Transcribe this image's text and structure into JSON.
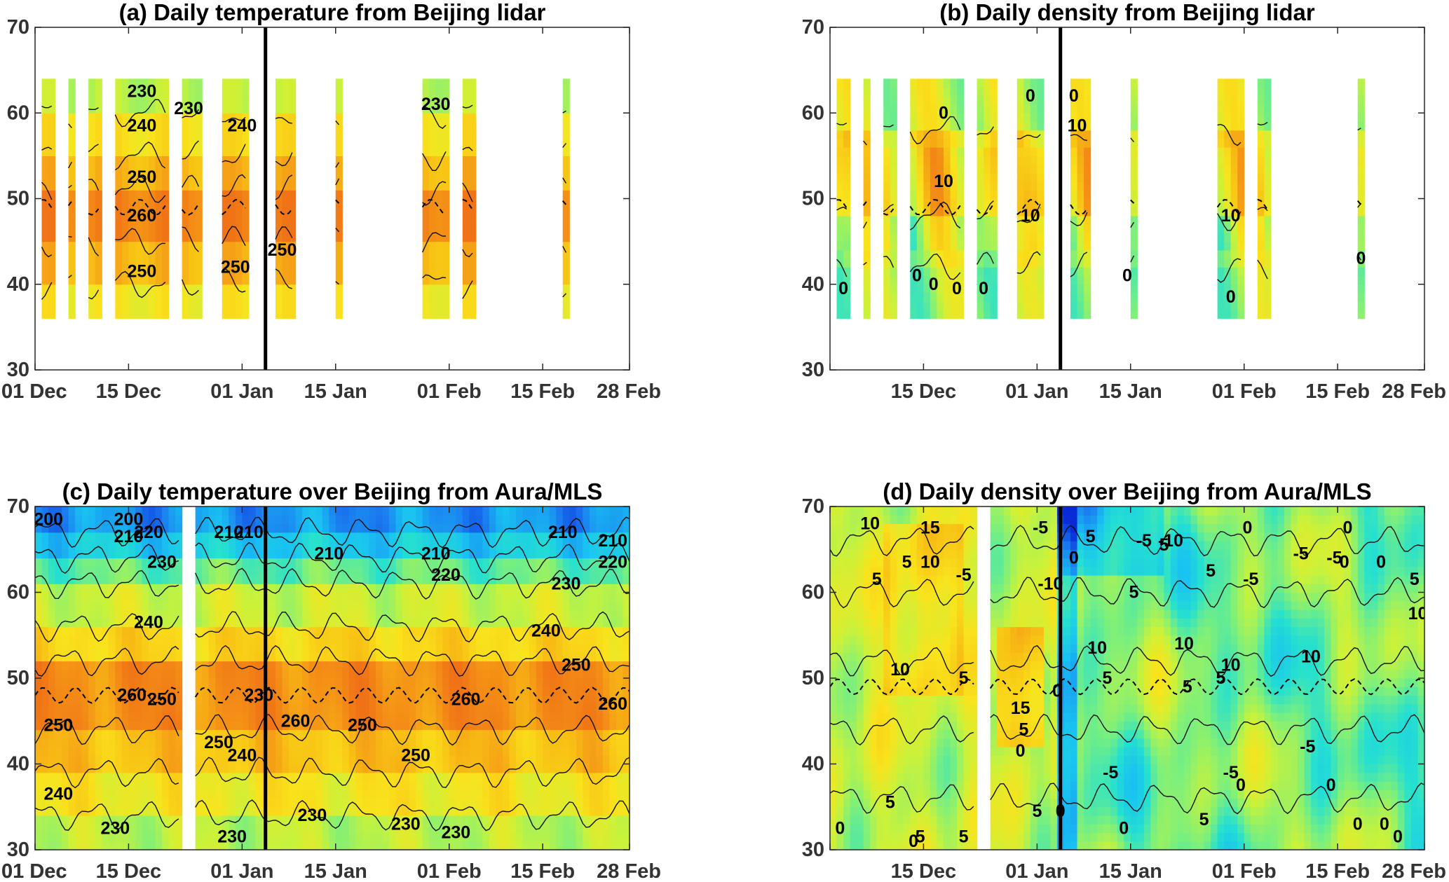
{
  "chart_data": [
    {
      "type": "heatmap",
      "title": "(a) Daily temperature from Beijing lidar",
      "xlabel": "",
      "ylabel": "",
      "xticks": [
        "01 Dec",
        "15 Dec",
        "01 Jan",
        "15 Jan",
        "01 Feb",
        "15 Feb",
        "28 Feb"
      ],
      "xtick_days": [
        0,
        14,
        31,
        45,
        62,
        76,
        89
      ],
      "xlim": [
        0,
        89
      ],
      "yticks": [
        "30",
        "40",
        "50",
        "60",
        "70"
      ],
      "ylim": [
        30,
        70
      ],
      "grid": false,
      "data_altitude_range": [
        36,
        64
      ],
      "vertical_line_day": 34.5,
      "observation_intervals": [
        [
          1,
          3
        ],
        [
          5,
          6
        ],
        [
          8,
          10
        ],
        [
          12,
          20
        ],
        [
          22,
          25
        ],
        [
          28,
          32
        ],
        [
          36,
          39
        ],
        [
          45,
          46
        ],
        [
          58,
          62
        ],
        [
          64,
          66
        ],
        [
          79,
          80
        ]
      ],
      "color_bands": [
        {
          "y": [
            60,
            64
          ],
          "value": 230
        },
        {
          "y": [
            55,
            60
          ],
          "value": 240
        },
        {
          "y": [
            51,
            55
          ],
          "value": 248
        },
        {
          "y": [
            45,
            51
          ],
          "value": 256
        },
        {
          "y": [
            40,
            45
          ],
          "value": 248
        },
        {
          "y": [
            36,
            40
          ],
          "value": 238
        }
      ],
      "contour_labels": [
        {
          "text": "230",
          "day": 16,
          "alt": 62.5
        },
        {
          "text": "230",
          "day": 23,
          "alt": 60.5
        },
        {
          "text": "240",
          "day": 16,
          "alt": 58.5
        },
        {
          "text": "240",
          "day": 31,
          "alt": 58.5
        },
        {
          "text": "250",
          "day": 16,
          "alt": 52.5
        },
        {
          "text": "260",
          "day": 16,
          "alt": 48
        },
        {
          "text": "250",
          "day": 16,
          "alt": 41.5
        },
        {
          "text": "250",
          "day": 30,
          "alt": 42
        },
        {
          "text": "250",
          "day": 37,
          "alt": 44
        },
        {
          "text": "230",
          "day": 60,
          "alt": 61
        }
      ],
      "dashed_level_alt": 49
    },
    {
      "type": "heatmap",
      "title": "(b) Daily density from Beijing lidar",
      "xlabel": "",
      "ylabel": "",
      "xticks": [
        "01 Dec",
        "15 Dec",
        "01 Jan",
        "15 Jan",
        "01 Feb",
        "15 Feb",
        "28 Feb"
      ],
      "xtick_days": [
        0,
        14,
        31,
        45,
        62,
        76,
        89
      ],
      "xlim": [
        0,
        89
      ],
      "yticks": [
        "30",
        "40",
        "50",
        "60",
        "70"
      ],
      "ylim": [
        30,
        70
      ],
      "grid": false,
      "data_altitude_range": [
        36,
        64
      ],
      "vertical_line_day": 34.5,
      "observation_intervals": [
        [
          1,
          3
        ],
        [
          5,
          6
        ],
        [
          8,
          10
        ],
        [
          12,
          20
        ],
        [
          22,
          25
        ],
        [
          28,
          32
        ],
        [
          36,
          39
        ],
        [
          45,
          46
        ],
        [
          58,
          62
        ],
        [
          64,
          66
        ],
        [
          79,
          80
        ]
      ],
      "color_bands": [
        {
          "y": [
            58,
            64
          ],
          "value": 0
        },
        {
          "y": [
            48,
            58
          ],
          "value": 5
        },
        {
          "y": [
            42,
            48
          ],
          "value": 0
        },
        {
          "y": [
            36,
            42
          ],
          "value": -2
        }
      ],
      "contour_labels": [
        {
          "text": "0",
          "day": 2,
          "alt": 39.5
        },
        {
          "text": "0",
          "day": 17,
          "alt": 60
        },
        {
          "text": "10",
          "day": 17,
          "alt": 52
        },
        {
          "text": "0",
          "day": 13,
          "alt": 41
        },
        {
          "text": "0",
          "day": 15.5,
          "alt": 40
        },
        {
          "text": "0",
          "day": 19,
          "alt": 39.5
        },
        {
          "text": "0",
          "day": 23,
          "alt": 39.5
        },
        {
          "text": "0",
          "day": 30,
          "alt": 62
        },
        {
          "text": "10",
          "day": 30,
          "alt": 48
        },
        {
          "text": "0",
          "day": 36.5,
          "alt": 62
        },
        {
          "text": "10",
          "day": 37,
          "alt": 58.5
        },
        {
          "text": "0",
          "day": 44.5,
          "alt": 41
        },
        {
          "text": "10",
          "day": 60,
          "alt": 48
        },
        {
          "text": "0",
          "day": 60,
          "alt": 38.5
        },
        {
          "text": "0",
          "day": 79.5,
          "alt": 43
        }
      ],
      "dashed_level_alt": 49
    },
    {
      "type": "heatmap",
      "title": "(c) Daily temperature over Beijing from Aura/MLS",
      "xlabel": "",
      "ylabel": "",
      "xticks": [
        "01 Dec",
        "15 Dec",
        "01 Jan",
        "15 Jan",
        "01 Feb",
        "15 Feb",
        "28 Feb"
      ],
      "xtick_days": [
        0,
        14,
        31,
        45,
        62,
        76,
        89
      ],
      "xlim": [
        0,
        89
      ],
      "yticks": [
        "30",
        "40",
        "50",
        "60",
        "70"
      ],
      "ylim": [
        30,
        70
      ],
      "grid": false,
      "data_altitude_range": [
        30,
        70
      ],
      "vertical_line_day": 34.5,
      "missing_intervals": [
        [
          22,
          24
        ]
      ],
      "color_bands": [
        {
          "y": [
            67,
            70
          ],
          "value": 205
        },
        {
          "y": [
            64,
            67
          ],
          "value": 212
        },
        {
          "y": [
            61,
            64
          ],
          "value": 222
        },
        {
          "y": [
            56,
            61
          ],
          "value": 232
        },
        {
          "y": [
            52,
            56
          ],
          "value": 242
        },
        {
          "y": [
            44,
            52
          ],
          "value": 254
        },
        {
          "y": [
            39,
            44
          ],
          "value": 246
        },
        {
          "y": [
            34,
            39
          ],
          "value": 238
        },
        {
          "y": [
            30,
            34
          ],
          "value": 230
        }
      ],
      "contour_labels": [
        {
          "text": "200",
          "day": 2,
          "alt": 68.5
        },
        {
          "text": "200",
          "day": 14,
          "alt": 68.5
        },
        {
          "text": "210",
          "day": 14,
          "alt": 66.5
        },
        {
          "text": "220",
          "day": 17,
          "alt": 67
        },
        {
          "text": "230",
          "day": 19,
          "alt": 63.5
        },
        {
          "text": "210",
          "day": 29,
          "alt": 67
        },
        {
          "text": "210",
          "day": 32,
          "alt": 67
        },
        {
          "text": "240",
          "day": 17,
          "alt": 56.5
        },
        {
          "text": "250",
          "day": 3.5,
          "alt": 44.5
        },
        {
          "text": "260",
          "day": 14.5,
          "alt": 48
        },
        {
          "text": "250",
          "day": 19,
          "alt": 47.5
        },
        {
          "text": "240",
          "day": 3.5,
          "alt": 36.5
        },
        {
          "text": "230",
          "day": 12,
          "alt": 32.5
        },
        {
          "text": "250",
          "day": 27.5,
          "alt": 42.5
        },
        {
          "text": "240",
          "day": 31,
          "alt": 41
        },
        {
          "text": "230",
          "day": 29.5,
          "alt": 31.5
        },
        {
          "text": "230",
          "day": 33.5,
          "alt": 48
        },
        {
          "text": "260",
          "day": 39,
          "alt": 45
        },
        {
          "text": "250",
          "day": 49,
          "alt": 44.5
        },
        {
          "text": "250",
          "day": 57,
          "alt": 41
        },
        {
          "text": "230",
          "day": 41.5,
          "alt": 34
        },
        {
          "text": "230",
          "day": 55.5,
          "alt": 33
        },
        {
          "text": "230",
          "day": 63,
          "alt": 32
        },
        {
          "text": "210",
          "day": 44,
          "alt": 64.5
        },
        {
          "text": "210",
          "day": 60,
          "alt": 64.5
        },
        {
          "text": "220",
          "day": 61.5,
          "alt": 62
        },
        {
          "text": "260",
          "day": 64.5,
          "alt": 47.5
        },
        {
          "text": "240",
          "day": 76.5,
          "alt": 55.5
        },
        {
          "text": "230",
          "day": 79.5,
          "alt": 61
        },
        {
          "text": "210",
          "day": 79,
          "alt": 67
        },
        {
          "text": "210",
          "day": 86.5,
          "alt": 66
        },
        {
          "text": "220",
          "day": 86.5,
          "alt": 63.5
        },
        {
          "text": "250",
          "day": 81,
          "alt": 51.5
        },
        {
          "text": "260",
          "day": 86.5,
          "alt": 47
        }
      ],
      "dashed_level_alt": 48
    },
    {
      "type": "heatmap",
      "title": "(d) Daily density over Beijing from Aura/MLS",
      "xlabel": "",
      "ylabel": "",
      "xticks": [
        "01 Dec",
        "15 Dec",
        "01 Jan",
        "15 Jan",
        "01 Feb",
        "15 Feb",
        "28 Feb"
      ],
      "xtick_days": [
        0,
        14,
        31,
        45,
        62,
        76,
        89
      ],
      "xlim": [
        0,
        89
      ],
      "yticks": [
        "30",
        "40",
        "50",
        "60",
        "70"
      ],
      "ylim": [
        30,
        70
      ],
      "grid": false,
      "data_altitude_range": [
        30,
        70
      ],
      "vertical_line_day": 34.5,
      "missing_intervals": [
        [
          22,
          24
        ]
      ],
      "color_bands": [
        {
          "y": [
            30,
            70
          ],
          "value": 0
        }
      ],
      "contour_labels": [
        {
          "text": "10",
          "day": 6,
          "alt": 68
        },
        {
          "text": "15",
          "day": 15,
          "alt": 67.5
        },
        {
          "text": "10",
          "day": 15,
          "alt": 63.5
        },
        {
          "text": "5",
          "day": 11.5,
          "alt": 63.5
        },
        {
          "text": "5",
          "day": 7,
          "alt": 61.5
        },
        {
          "text": "-5",
          "day": 20,
          "alt": 62
        },
        {
          "text": "10",
          "day": 10.5,
          "alt": 51
        },
        {
          "text": "5",
          "day": 20,
          "alt": 50
        },
        {
          "text": "0",
          "day": 1.5,
          "alt": 32.5
        },
        {
          "text": "5",
          "day": 9,
          "alt": 35.5
        },
        {
          "text": "0",
          "day": 12.5,
          "alt": 31
        },
        {
          "text": "5",
          "day": 13.5,
          "alt": 31.5
        },
        {
          "text": "5",
          "day": 20,
          "alt": 31.5
        },
        {
          "text": "-5",
          "day": 31.5,
          "alt": 67.5
        },
        {
          "text": "-10",
          "day": 33,
          "alt": 61
        },
        {
          "text": "15",
          "day": 28.5,
          "alt": 46.5
        },
        {
          "text": "5",
          "day": 29,
          "alt": 44
        },
        {
          "text": "0",
          "day": 28.5,
          "alt": 41.5
        },
        {
          "text": "0",
          "day": 34,
          "alt": 48.5
        },
        {
          "text": "5",
          "day": 31,
          "alt": 34.5
        },
        {
          "text": "0",
          "day": 34.5,
          "alt": 34.5
        },
        {
          "text": "0",
          "day": 36.5,
          "alt": 64
        },
        {
          "text": "5",
          "day": 39,
          "alt": 66.5
        },
        {
          "text": "10",
          "day": 40,
          "alt": 53.5
        },
        {
          "text": "5",
          "day": 41.5,
          "alt": 50
        },
        {
          "text": "-5",
          "day": 42,
          "alt": 39
        },
        {
          "text": "-5",
          "day": 47,
          "alt": 66
        },
        {
          "text": "-10",
          "day": 51,
          "alt": 66
        },
        {
          "text": "5",
          "day": 50,
          "alt": 65.5
        },
        {
          "text": "5",
          "day": 45.5,
          "alt": 60
        },
        {
          "text": "5",
          "day": 57,
          "alt": 62.5
        },
        {
          "text": "10",
          "day": 53,
          "alt": 54
        },
        {
          "text": "5",
          "day": 53.5,
          "alt": 49
        },
        {
          "text": "10",
          "day": 60,
          "alt": 51.5
        },
        {
          "text": "5",
          "day": 58.5,
          "alt": 50
        },
        {
          "text": "-5",
          "day": 60,
          "alt": 39
        },
        {
          "text": "0",
          "day": 61.5,
          "alt": 37.5
        },
        {
          "text": "5",
          "day": 56,
          "alt": 33.5
        },
        {
          "text": "0",
          "day": 44,
          "alt": 32.5
        },
        {
          "text": "0",
          "day": 62.5,
          "alt": 67.5
        },
        {
          "text": "-5",
          "day": 63,
          "alt": 61.5
        },
        {
          "text": "-5",
          "day": 70.5,
          "alt": 64.5
        },
        {
          "text": "-5",
          "day": 75.5,
          "alt": 64
        },
        {
          "text": "0",
          "day": 77,
          "alt": 63.5
        },
        {
          "text": "0",
          "day": 75,
          "alt": 37.5
        },
        {
          "text": "0",
          "day": 79,
          "alt": 33
        },
        {
          "text": "0",
          "day": 83,
          "alt": 33
        },
        {
          "text": "0",
          "day": 85,
          "alt": 31.5
        },
        {
          "text": "10",
          "day": 72,
          "alt": 52.5
        },
        {
          "text": "0",
          "day": 77.5,
          "alt": 67.5
        },
        {
          "text": "0",
          "day": 82.5,
          "alt": 63.5
        },
        {
          "text": "5",
          "day": 87.5,
          "alt": 61.5
        },
        {
          "text": "10",
          "day": 88,
          "alt": 57.5
        },
        {
          "text": "-5",
          "day": 71.5,
          "alt": 42
        }
      ],
      "dashed_level_alt": 49
    }
  ],
  "colors": {
    "axis": "#262626",
    "vertical_line": "#000000",
    "colormap": [
      "#0a2ad8",
      "#1a7cf0",
      "#19c2f2",
      "#25e0d0",
      "#7ef07a",
      "#caf23a",
      "#f9e31c",
      "#f8c215",
      "#f48f16",
      "#ef6a16",
      "#e23617"
    ]
  }
}
